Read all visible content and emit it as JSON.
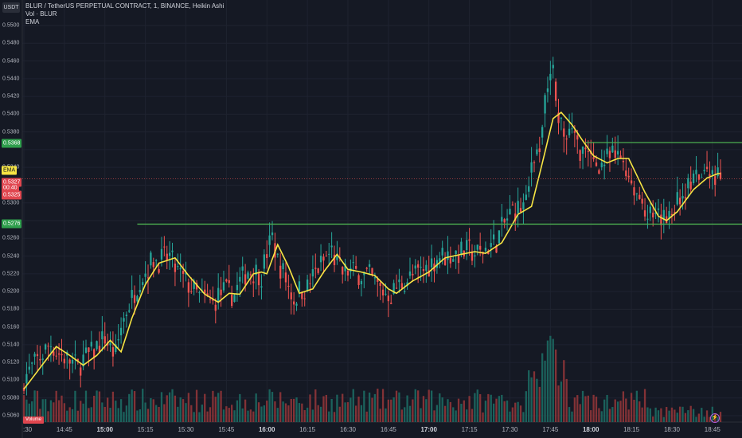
{
  "header": {
    "quote_badge": "USDT",
    "title": "BLUR / TetherUS PERPETUAL CONTRACT, 1, BINANCE, Heikin Ashi",
    "vol_label": "Vol · BLUR",
    "ema_label": "EMA"
  },
  "price_axis": {
    "ticks": [
      "0.5500",
      "0.5480",
      "0.5460",
      "0.5440",
      "0.5420",
      "0.5400",
      "0.5380",
      "0.5360",
      "0.5340",
      "0.5320",
      "0.5300",
      "0.5280",
      "0.5260",
      "0.5240",
      "0.5220",
      "0.5200",
      "0.5180",
      "0.5160",
      "0.5140",
      "0.5120",
      "0.5100",
      "0.5080",
      "0.5060"
    ],
    "tick_values": [
      0.55,
      0.548,
      0.546,
      0.544,
      0.542,
      0.54,
      0.538,
      0.536,
      0.534,
      0.532,
      0.53,
      0.528,
      0.526,
      0.524,
      0.522,
      0.52,
      0.518,
      0.516,
      0.514,
      0.512,
      0.51,
      0.508,
      0.506
    ],
    "hidden_ticks": [
      "0.5360",
      "0.5320",
      "0.5280"
    ]
  },
  "tags": {
    "upper_level": "0.5368",
    "upper_level_value": 0.5368,
    "lower_level": "0.5276",
    "lower_level_value": 0.5276,
    "ema_tag": "EMA",
    "ema_value": 0.5334,
    "last_price": "0.5327",
    "countdown": "00:40",
    "prev_price": "0.5325",
    "last_price_value": 0.5327
  },
  "volume_label": "Volume",
  "time_axis": {
    "labels": [
      "14:30",
      "14:45",
      "15:00",
      "15:15",
      "15:30",
      "15:45",
      "16:00",
      "16:15",
      "16:30",
      "16:45",
      "17:00",
      "17:15",
      "17:30",
      "17:45",
      "18:00",
      "18:15",
      "18:30",
      "18:45"
    ],
    "bold": [
      "15:00",
      "16:00",
      "17:00",
      "18:00"
    ],
    "first_label_display": ":30"
  },
  "colors": {
    "up": "#26a69a",
    "down": "#ef5350",
    "ema": "#f7e543",
    "level_line": "#4caf50",
    "grid": "#1f2330",
    "background": "#151924",
    "volume_up": "#1c6a63",
    "volume_down": "#8f3538"
  },
  "chart_data": {
    "type": "candlestick",
    "title": "BLUR / TetherUS PERPETUAL CONTRACT, 1, BINANCE, Heikin Ashi",
    "interval": "1 minute",
    "ylim": [
      0.5053,
      0.5505
    ],
    "x_range": [
      "14:30",
      "18:48"
    ],
    "horizontal_levels": [
      {
        "label": "0.5368",
        "value": 0.5368,
        "from": "17:58"
      },
      {
        "label": "0.5276",
        "value": 0.5276,
        "from": "15:12"
      }
    ],
    "ema_series_approx": [
      {
        "time": "14:30",
        "value": 0.509
      },
      {
        "time": "14:37",
        "value": 0.5118
      },
      {
        "time": "14:42",
        "value": 0.5138
      },
      {
        "time": "14:47",
        "value": 0.5128
      },
      {
        "time": "14:52",
        "value": 0.5117
      },
      {
        "time": "14:57",
        "value": 0.5128
      },
      {
        "time": "15:02",
        "value": 0.5145
      },
      {
        "time": "15:06",
        "value": 0.5132
      },
      {
        "time": "15:10",
        "value": 0.517
      },
      {
        "time": "15:15",
        "value": 0.5208
      },
      {
        "time": "15:20",
        "value": 0.5232
      },
      {
        "time": "15:26",
        "value": 0.5238
      },
      {
        "time": "15:31",
        "value": 0.5218
      },
      {
        "time": "15:37",
        "value": 0.5197
      },
      {
        "time": "15:42",
        "value": 0.5188
      },
      {
        "time": "15:46",
        "value": 0.5198
      },
      {
        "time": "15:50",
        "value": 0.5197
      },
      {
        "time": "15:55",
        "value": 0.522
      },
      {
        "time": "15:58",
        "value": 0.5222
      },
      {
        "time": "16:00",
        "value": 0.522
      },
      {
        "time": "16:04",
        "value": 0.5253
      },
      {
        "time": "16:08",
        "value": 0.5228
      },
      {
        "time": "16:12",
        "value": 0.5198
      },
      {
        "time": "16:17",
        "value": 0.5203
      },
      {
        "time": "16:21",
        "value": 0.5222
      },
      {
        "time": "16:26",
        "value": 0.5242
      },
      {
        "time": "16:30",
        "value": 0.5225
      },
      {
        "time": "16:35",
        "value": 0.5222
      },
      {
        "time": "16:40",
        "value": 0.5218
      },
      {
        "time": "16:45",
        "value": 0.5203
      },
      {
        "time": "16:48",
        "value": 0.5198
      },
      {
        "time": "16:54",
        "value": 0.5212
      },
      {
        "time": "17:00",
        "value": 0.5222
      },
      {
        "time": "17:06",
        "value": 0.5238
      },
      {
        "time": "17:12",
        "value": 0.5242
      },
      {
        "time": "17:17",
        "value": 0.5245
      },
      {
        "time": "17:21",
        "value": 0.5243
      },
      {
        "time": "17:27",
        "value": 0.5255
      },
      {
        "time": "17:33",
        "value": 0.5287
      },
      {
        "time": "17:38",
        "value": 0.5296
      },
      {
        "time": "17:42",
        "value": 0.5345
      },
      {
        "time": "17:46",
        "value": 0.5395
      },
      {
        "time": "17:49",
        "value": 0.5402
      },
      {
        "time": "17:53",
        "value": 0.5388
      },
      {
        "time": "17:57",
        "value": 0.537
      },
      {
        "time": "18:01",
        "value": 0.5353
      },
      {
        "time": "18:06",
        "value": 0.5345
      },
      {
        "time": "18:10",
        "value": 0.535
      },
      {
        "time": "18:14",
        "value": 0.535
      },
      {
        "time": "18:20",
        "value": 0.5312
      },
      {
        "time": "18:25",
        "value": 0.5285
      },
      {
        "time": "18:28",
        "value": 0.528
      },
      {
        "time": "18:32",
        "value": 0.529
      },
      {
        "time": "18:38",
        "value": 0.5315
      },
      {
        "time": "18:43",
        "value": 0.5328
      },
      {
        "time": "18:47",
        "value": 0.5333
      }
    ],
    "ohlc_note": "approximate 1-minute Heikin Ashi candles; last close 0.5327",
    "last_close": 0.5327,
    "session_high_approx": 0.5478,
    "session_low_approx": 0.5088
  }
}
